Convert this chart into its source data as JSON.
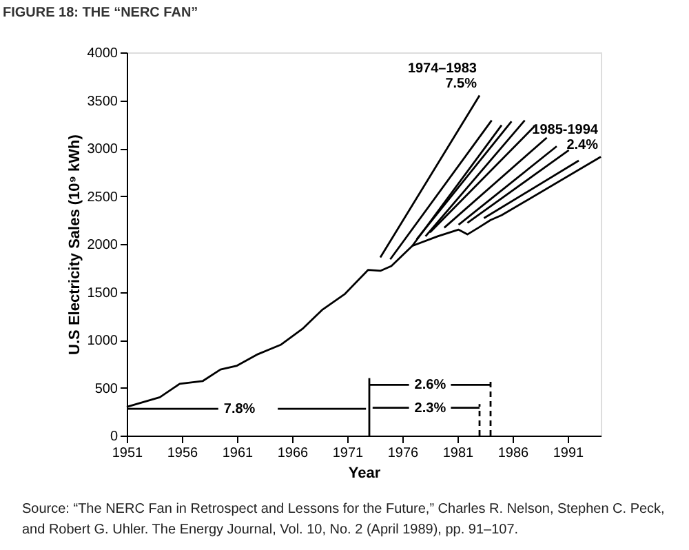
{
  "chart_data": {
    "type": "line",
    "title": "FIGURE 18: THE “NERC FAN”",
    "xlabel": "Year",
    "ylabel": "U.S Electricity Sales (10⁹ kWh)",
    "xlim": [
      1951,
      1994
    ],
    "xticks": [
      1951,
      1956,
      1961,
      1966,
      1971,
      1976,
      1981,
      1986,
      1991
    ],
    "ylim": [
      0,
      4000
    ],
    "yticks": [
      0,
      500,
      1000,
      1500,
      2000,
      2500,
      3000,
      3500,
      4000
    ],
    "grid": false,
    "legend": false,
    "marker": "none",
    "series": [
      {
        "color": "#000000",
        "line_style": "solid",
        "x": [
          1951,
          1954,
          1955.8,
          1957.9,
          1959.5,
          1961,
          1962.9,
          1965,
          1967,
          1968.7,
          1970.8,
          1972.9,
          1974,
          1975,
          1976.9,
          1979.2,
          1981.1,
          1981.9,
          1982.9,
          1984,
          1985,
          1994
        ],
        "values": [
          300,
          400,
          540,
          570,
          690,
          730,
          850,
          950,
          1120,
          1310,
          1480,
          1730,
          1720,
          1770,
          1980,
          2080,
          2150,
          2100,
          2170,
          2250,
          2300,
          2910
        ]
      },
      {
        "color": "#000000",
        "line_style": "solid",
        "x": [
          1974,
          1983
        ],
        "values": [
          1860,
          3550
        ]
      },
      {
        "color": "#000000",
        "line_style": "solid",
        "x": [
          1974.9,
          1984.1
        ],
        "values": [
          1840,
          3290
        ]
      },
      {
        "color": "#000000",
        "line_style": "solid",
        "x": [
          1976.9,
          1985
        ],
        "values": [
          1980,
          3240
        ]
      },
      {
        "color": "#000000",
        "line_style": "solid",
        "x": [
          1977.3,
          1985.9
        ],
        "values": [
          2050,
          3280
        ]
      },
      {
        "color": "#000000",
        "line_style": "solid",
        "x": [
          1978.1,
          1987.1
        ],
        "values": [
          2080,
          3290
        ]
      },
      {
        "color": "#000000",
        "line_style": "solid",
        "x": [
          1978.5,
          1988
        ],
        "values": [
          2120,
          3230
        ]
      },
      {
        "color": "#000000",
        "line_style": "solid",
        "x": [
          1979.8,
          1989.1
        ],
        "values": [
          2170,
          3110
        ]
      },
      {
        "color": "#000000",
        "line_style": "solid",
        "x": [
          1981.1,
          1990
        ],
        "values": [
          2200,
          3020
        ]
      },
      {
        "color": "#000000",
        "line_style": "solid",
        "x": [
          1981.9,
          1991.1
        ],
        "values": [
          2220,
          2980
        ]
      },
      {
        "color": "#000000",
        "line_style": "solid",
        "x": [
          1983.4,
          1992
        ],
        "values": [
          2270,
          2870
        ]
      },
      {
        "color": "#000000",
        "line_style": "solid",
        "x": [
          1951,
          1959.3,
          1962,
          1964.7,
          1972.7
        ],
        "values": [
          280,
          280,
          null,
          280,
          280
        ]
      },
      {
        "color": "#000000",
        "line_style": "solid",
        "x": [
          1973,
          1976.6,
          1978.5,
          1980.4,
          1984
        ],
        "values": [
          530,
          530,
          null,
          530,
          530
        ]
      },
      {
        "color": "#000000",
        "line_style": "solid",
        "x": [
          1973.3,
          1976.6,
          1978.5,
          1980.4,
          1983
        ],
        "values": [
          290,
          290,
          null,
          290,
          290
        ]
      },
      {
        "color": "#000000",
        "line_style": "solid",
        "x": [
          1973,
          1973
        ],
        "values": [
          0,
          600
        ]
      },
      {
        "color": "#000000",
        "line_style": "dashed",
        "x": [
          1983,
          1983
        ],
        "values": [
          0,
          330
        ]
      },
      {
        "color": "#000000",
        "line_style": "dashed",
        "x": [
          1984,
          1984
        ],
        "values": [
          0,
          600
        ]
      }
    ],
    "annotations": [
      {
        "text": "1974–1983",
        "x": 1983,
        "y": 3550
      },
      {
        "text": "7.5%",
        "x": 1983,
        "y": 3550
      },
      {
        "text": "1985-1994",
        "x": 1994,
        "y": 2910
      },
      {
        "text": "2.4%",
        "x": 1994,
        "y": 2910
      },
      {
        "text": "7.8%",
        "x": 1959.3,
        "y": 280
      },
      {
        "text": "2.6%",
        "x": 1976.6,
        "y": 530
      },
      {
        "text": "2.3%",
        "x": 1976.6,
        "y": 290
      },
      "Source: “The NERC Fan in Retrospect and Lessons for the Future,” Charles R. Nelson, Stephen C. Peck, and Robert G. Uhler. The Energy Journal, Vol. 10, No. 2 (April 1989), pp. 91–107."
    ]
  }
}
